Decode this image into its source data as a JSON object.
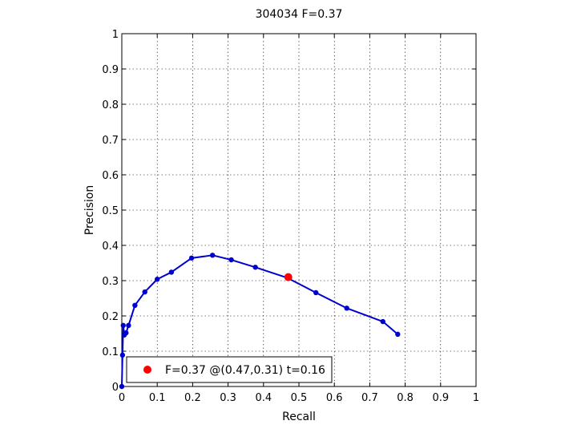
{
  "chart_data": {
    "type": "line",
    "title": "304034 F=0.37",
    "xlabel": "Recall",
    "ylabel": "Precision",
    "xlim": [
      0,
      1
    ],
    "ylim": [
      0,
      1
    ],
    "xticks": [
      "0",
      "0.1",
      "0.2",
      "0.3",
      "0.4",
      "0.5",
      "0.6",
      "0.7",
      "0.8",
      "0.9",
      "1"
    ],
    "yticks": [
      "0",
      "0.1",
      "0.2",
      "0.3",
      "0.4",
      "0.5",
      "0.6",
      "0.7",
      "0.8",
      "0.9",
      "1"
    ],
    "grid": true,
    "series": [
      {
        "color": "#0000cc",
        "x": [
          0.0,
          0.002,
          0.004,
          0.007,
          0.012,
          0.019,
          0.037,
          0.065,
          0.1,
          0.14,
          0.197,
          0.256,
          0.309,
          0.377,
          0.467,
          0.548,
          0.635,
          0.737,
          0.779
        ],
        "y": [
          0.0,
          0.089,
          0.173,
          0.146,
          0.152,
          0.173,
          0.23,
          0.268,
          0.304,
          0.324,
          0.364,
          0.372,
          0.359,
          0.338,
          0.308,
          0.266,
          0.222,
          0.184,
          0.148
        ]
      }
    ],
    "highlight": {
      "color": "#ff0000",
      "x": 0.47,
      "y": 0.31,
      "label": "F=0.37 @(0.47,0.31) t=0.16"
    },
    "legend": {
      "position": "bottom-left",
      "entries": [
        "F=0.37 @(0.47,0.31) t=0.16"
      ]
    }
  }
}
